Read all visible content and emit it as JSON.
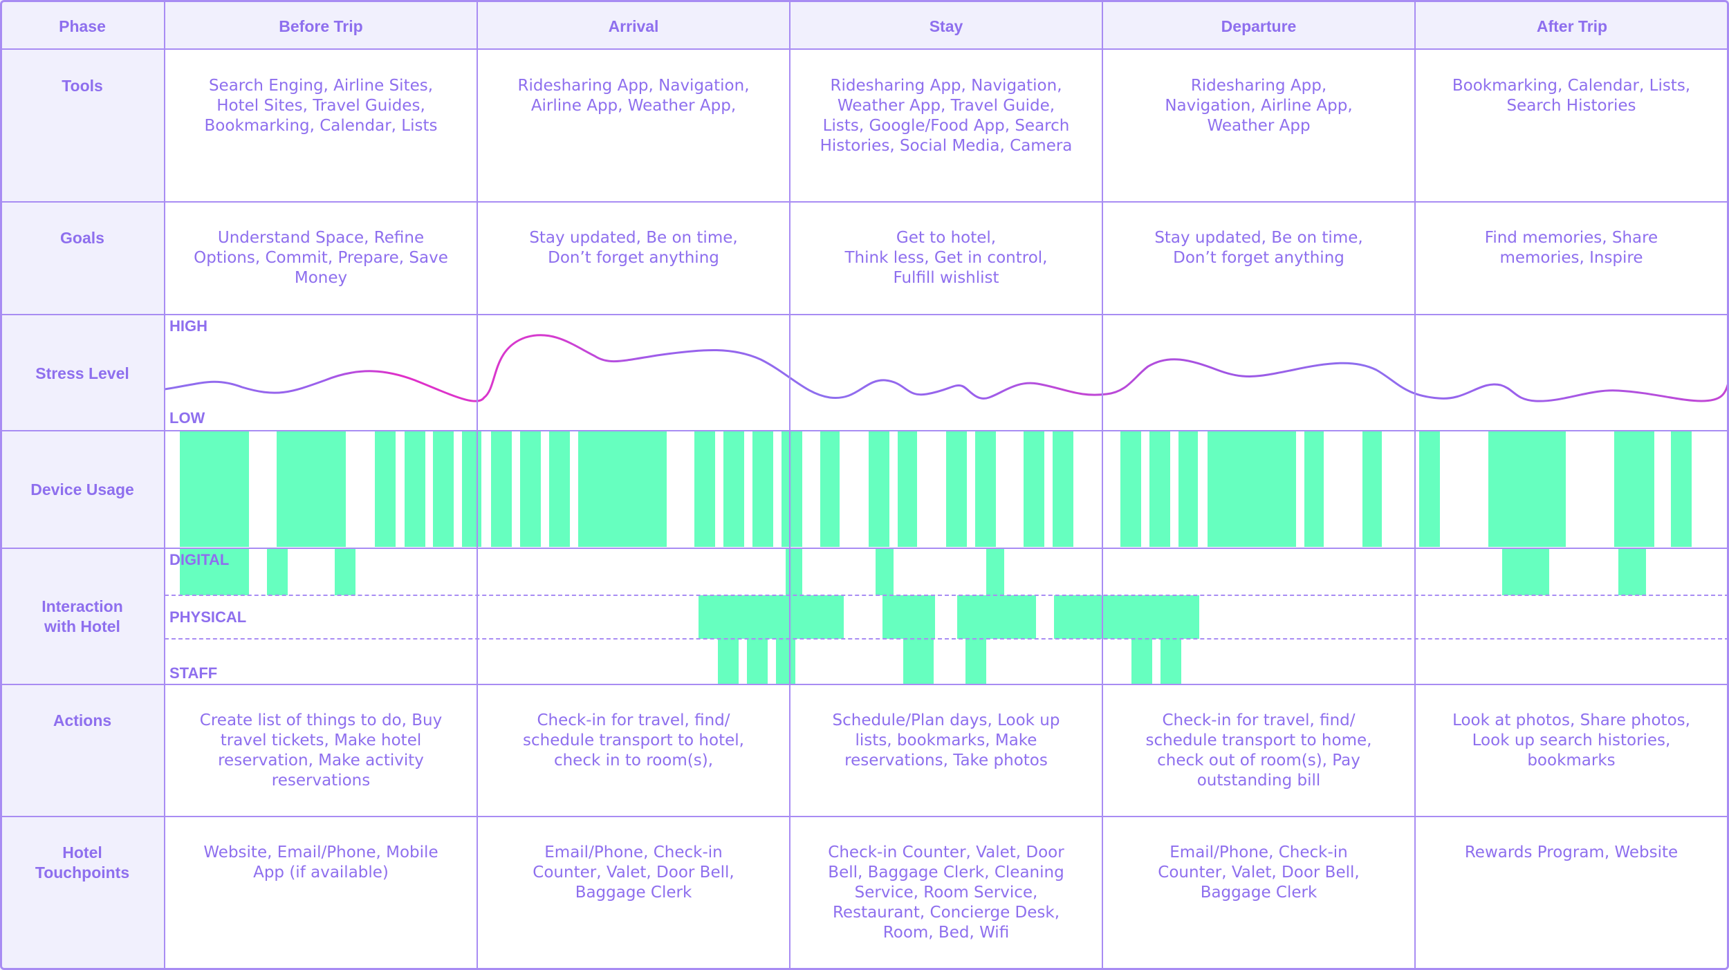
{
  "header": {
    "phase_label": "Phase",
    "phases": [
      "Before Trip",
      "Arrival",
      "Stay",
      "Departure",
      "After Trip"
    ]
  },
  "rows": {
    "tools": {
      "label": "Tools",
      "cells": [
        "Search Enging, Airline Sites,\nHotel Sites, Travel Guides,\nBookmarking, Calendar, Lists",
        "Ridesharing App, Navigation,\nAirline App, Weather App,",
        "Ridesharing App, Navigation,\nWeather App, Travel Guide,\nLists, Google/Food App, Search\nHistories, Social Media, Camera",
        "Ridesharing App,\nNavigation, Airline App,\nWeather App",
        "Bookmarking, Calendar, Lists,\nSearch Histories"
      ]
    },
    "goals": {
      "label": "Goals",
      "cells": [
        "Understand Space, Refine\nOptions, Commit, Prepare, Save\nMoney",
        "Stay updated, Be on time,\nDon’t forget anything",
        "Get to hotel,\nThink less, Get in control,\nFulfill wishlist",
        "Stay updated, Be on time,\nDon’t forget anything",
        "Find memories, Share\nmemories, Inspire"
      ]
    },
    "stress": {
      "label": "Stress Level",
      "high_label": "HIGH",
      "low_label": "LOW"
    },
    "device": {
      "label": "Device Usage"
    },
    "interaction": {
      "label": "Interaction\nwith Hotel",
      "lanes": [
        "DIGITAL",
        "PHYSICAL",
        "STAFF"
      ]
    },
    "actions": {
      "label": "Actions",
      "cells": [
        "Create list of things to do, Buy\ntravel tickets, Make hotel\nreservation, Make activity\nreservations",
        "Check-in for travel, find/\nschedule transport to hotel,\ncheck in to room(s),",
        "Schedule/Plan days, Look up\nlists, bookmarks, Make\nreservations, Take photos",
        "Check-in for travel, find/\nschedule transport to home,\ncheck out of room(s), Pay\noutstanding bill",
        "Look at photos, Share photos,\nLook up search histories,\nbookmarks"
      ]
    },
    "touchpoints": {
      "label": "Hotel\nTouchpoints",
      "cells": [
        "Website, Email/Phone, Mobile\nApp (if available)",
        "Email/Phone, Check-in\nCounter, Valet, Door Bell,\nBaggage Clerk",
        "Check-in Counter, Valet, Door\nBell, Baggage Clerk, Cleaning\nService, Room Service,\nRestaurant, Concierge Desk,\nRoom, Bed, Wifi",
        "Email/Phone, Check-in\nCounter, Valet, Door Bell,\nBaggage Clerk",
        "Rewards Program, Website"
      ]
    }
  },
  "colors": {
    "accent": "#8e6fee",
    "grid": "#a88cf3",
    "header_bg": "#f1f0fd",
    "usage_bar": "#66ffbf",
    "stress_line_start": "#8e6fee",
    "stress_line_peak": "#e02fc8"
  }
}
